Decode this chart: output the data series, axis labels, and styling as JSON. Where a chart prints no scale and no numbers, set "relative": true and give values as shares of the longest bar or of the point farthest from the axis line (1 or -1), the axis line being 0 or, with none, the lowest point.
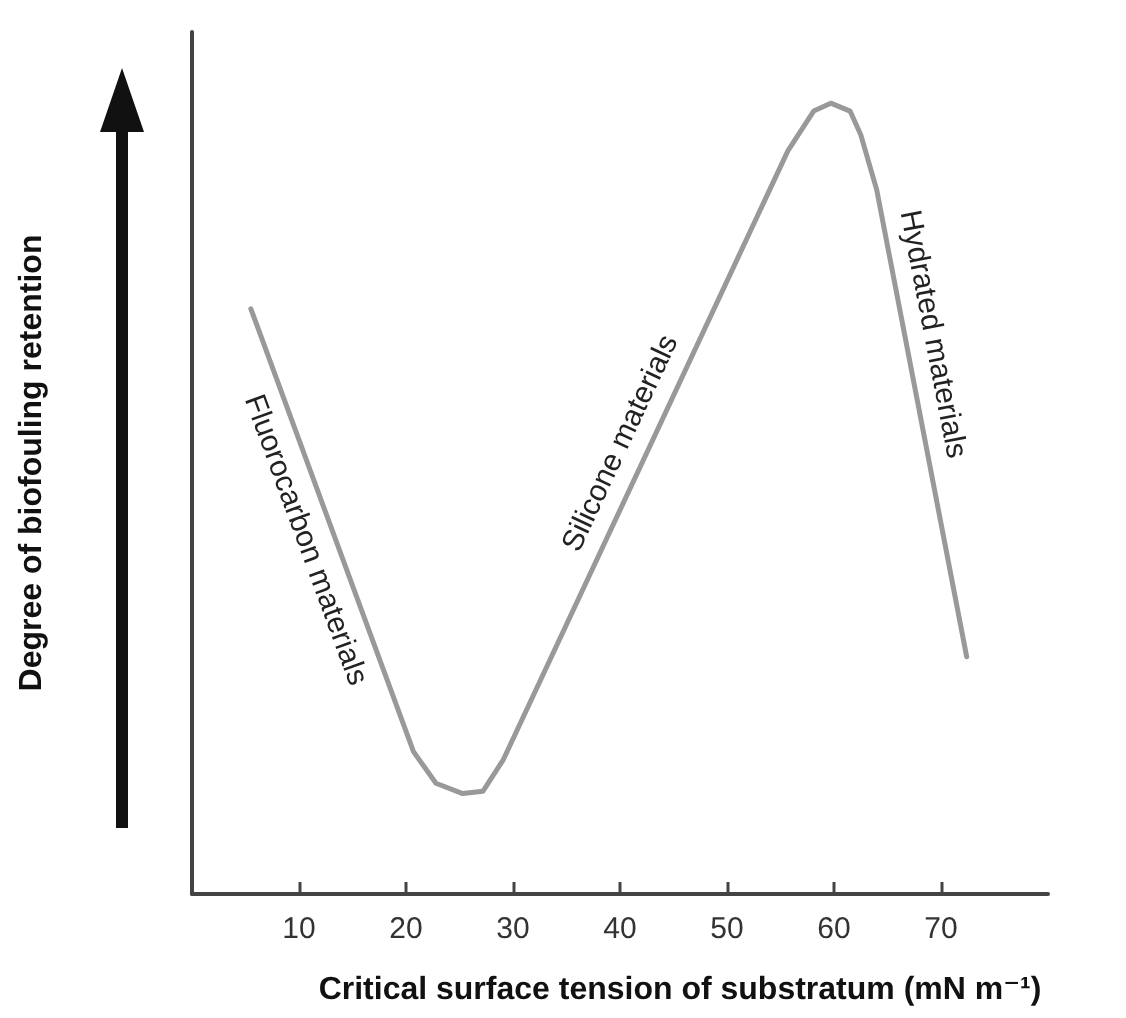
{
  "chart_data": {
    "type": "line",
    "relative": true,
    "xlabel": "Critical surface tension of substratum (mN m⁻¹)",
    "ylabel": "Degree of biofouling retention",
    "x": [
      5.5,
      20.7,
      22.8,
      25.3,
      27.2,
      29.1,
      55.7,
      58.1,
      59.7,
      61.5,
      62.5,
      64.0,
      72.4
    ],
    "series": [
      {
        "color": "#999999",
        "values": [
          0.74,
          0.18,
          0.14,
          0.127,
          0.13,
          0.17,
          0.94,
          0.99,
          1,
          0.99,
          0.96,
          0.89,
          0.3
        ]
      }
    ],
    "xlim": [
      0,
      80
    ],
    "xticks": [
      10,
      20,
      30,
      40,
      50,
      60,
      70
    ],
    "annotations": [
      "Fluorocarbon materials",
      "Silicone materials",
      "Hydrated materials"
    ],
    "grid": false,
    "marker": "none",
    "line_style": "solid"
  }
}
